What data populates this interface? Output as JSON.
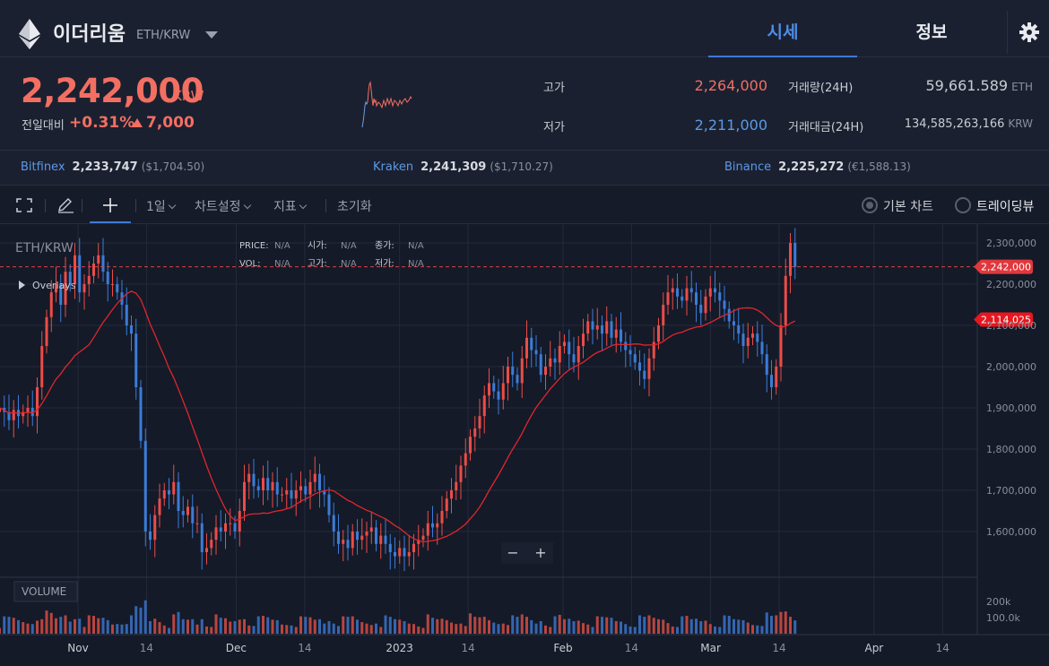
{
  "header": {
    "coin_name": "이더리움",
    "pair": "ETH/KRW",
    "tabs": [
      "시세",
      "정보"
    ]
  },
  "ticker": {
    "price": "2,242,000",
    "price_unit": "KRW",
    "change_label": "전일대비",
    "change_pct": "+0.31%",
    "change_abs": "7,000",
    "high_label": "고가",
    "high": "2,264,000",
    "low_label": "저가",
    "low": "2,211,000",
    "volume_label": "거래량(24H)",
    "volume": "59,661.589",
    "volume_unit": "ETH",
    "turnover_label": "거래대금(24H)",
    "turnover": "134,585,263,166",
    "turnover_unit": "KRW"
  },
  "exchanges": [
    {
      "name": "Bitfinex",
      "price": "2,233,747",
      "fx": "($1,704.50)"
    },
    {
      "name": "Kraken",
      "price": "2,241,309",
      "fx": "($1,710.27)"
    },
    {
      "name": "Binance",
      "price": "2,225,272",
      "fx": "(€1,588.13)"
    }
  ],
  "toolbar": {
    "interval": "1일",
    "chart_settings": "차트설정",
    "indicators": "지표",
    "reset": "초기화",
    "basic_chart": "기본 차트",
    "tradingview": "트레이딩뷰"
  },
  "chart_data": {
    "type": "candlestick",
    "symbol": "ETH/KRW",
    "overlays_label": "Overlays",
    "volume_label": "VOLUME",
    "info_fields": [
      {
        "label": "PRICE:",
        "value": "N/A"
      },
      {
        "label": "시가:",
        "value": "N/A"
      },
      {
        "label": "종가:",
        "value": "N/A"
      },
      {
        "label": "VOL:",
        "value": "N/A"
      },
      {
        "label": "고가:",
        "value": "N/A"
      },
      {
        "label": "저가:",
        "value": "N/A"
      }
    ],
    "y_ticks": [
      "2,300,000",
      "2,200,000",
      "2,100,000",
      "2,000,000",
      "1,900,000",
      "1,800,000",
      "1,700,000",
      "1,600,000"
    ],
    "y_tick_values": [
      2300000,
      2200000,
      2100000,
      2000000,
      1900000,
      1800000,
      1700000,
      1600000
    ],
    "volume_ticks": [
      "200k",
      "100.0k"
    ],
    "volume_tick_values": [
      200000,
      100000
    ],
    "x_ticks": [
      "Nov",
      "14",
      "Dec",
      "14",
      "2023",
      "14",
      "Feb",
      "14",
      "Mar",
      "14",
      "Apr",
      "14"
    ],
    "x_tick_dates": [
      "2022-11-01",
      "2022-11-14",
      "2022-12-01",
      "2022-12-14",
      "2023-01-01",
      "2023-01-14",
      "2023-02-01",
      "2023-02-14",
      "2023-03-01",
      "2023-03-14",
      "2023-04-01",
      "2023-04-14"
    ],
    "last_price_label": "2,242,000",
    "last_price": 2242000,
    "ma_label": "2,114,025",
    "ma_value": 2114025,
    "closes": [
      1900000,
      1890000,
      1870000,
      1895000,
      1880000,
      1890000,
      1900000,
      1880000,
      1950000,
      2050000,
      2120000,
      2180000,
      2200000,
      2150000,
      2230000,
      2200000,
      2270000,
      2180000,
      2200000,
      2220000,
      2250000,
      2270000,
      2230000,
      2200000,
      2200000,
      2180000,
      2150000,
      2100000,
      2080000,
      1950000,
      1820000,
      1600000,
      1580000,
      1640000,
      1680000,
      1700000,
      1690000,
      1720000,
      1650000,
      1640000,
      1660000,
      1620000,
      1620000,
      1550000,
      1560000,
      1580000,
      1610000,
      1600000,
      1620000,
      1620000,
      1600000,
      1650000,
      1720000,
      1740000,
      1710000,
      1700000,
      1730000,
      1700000,
      1720000,
      1690000,
      1690000,
      1700000,
      1680000,
      1700000,
      1710000,
      1690000,
      1720000,
      1740000,
      1700000,
      1690000,
      1640000,
      1600000,
      1570000,
      1580000,
      1560000,
      1600000,
      1580000,
      1590000,
      1600000,
      1610000,
      1570000,
      1590000,
      1570000,
      1550000,
      1540000,
      1560000,
      1540000,
      1550000,
      1570000,
      1580000,
      1590000,
      1620000,
      1610000,
      1620000,
      1650000,
      1680000,
      1700000,
      1720000,
      1760000,
      1790000,
      1830000,
      1850000,
      1880000,
      1930000,
      1960000,
      1940000,
      1920000,
      1960000,
      2000000,
      1980000,
      1960000,
      2020000,
      2070000,
      2040000,
      2030000,
      1980000,
      2000000,
      2020000,
      2010000,
      2050000,
      2060000,
      2030000,
      2010000,
      2050000,
      2080000,
      2110000,
      2090000,
      2100000,
      2080000,
      2110000,
      2070000,
      2090000,
      2060000,
      2040000,
      2030000,
      2010000,
      1990000,
      1970000,
      2020000,
      2060000,
      2100000,
      2150000,
      2180000,
      2190000,
      2170000,
      2160000,
      2190000,
      2180000,
      2150000,
      2130000,
      2170000,
      2190000,
      2180000,
      2160000,
      2140000,
      2110000,
      2100000,
      2080000,
      2050000,
      2070000,
      2080000,
      2060000,
      2030000,
      1980000,
      1950000,
      2000000,
      2100000,
      2220000,
      2300000,
      2242000
    ]
  }
}
